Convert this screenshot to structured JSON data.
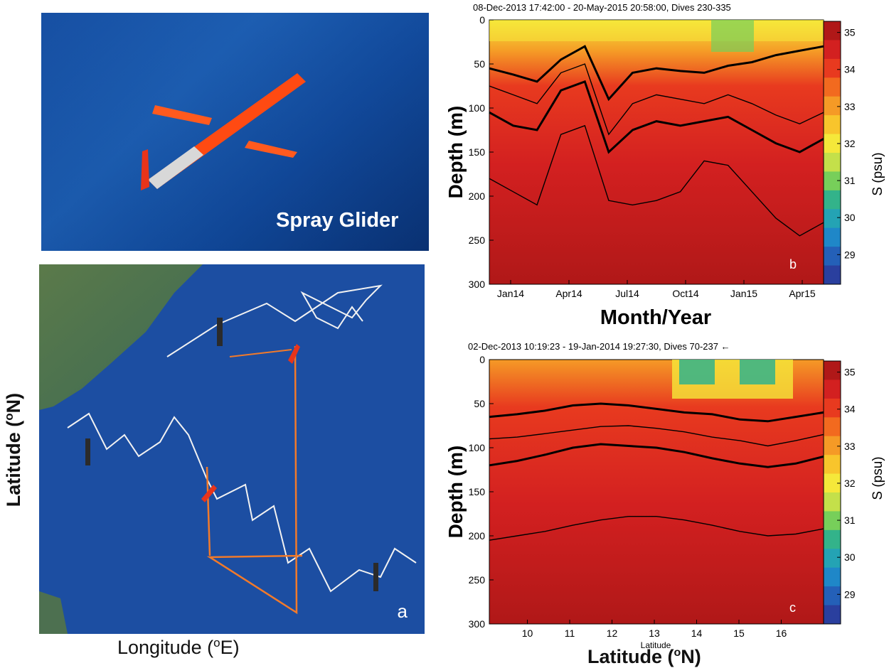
{
  "photo": {
    "caption": "Spray Glider"
  },
  "map": {
    "panel_label": "a",
    "xlabel_main": "Longitude (",
    "xlabel_sup": "o",
    "xlabel_end": "E)",
    "ylabel_main": "Latitude (",
    "ylabel_sup": "o",
    "ylabel_end": "N)"
  },
  "colorbar": {
    "label": "S (psu)",
    "ticks": [
      "35",
      "34",
      "33",
      "32",
      "31",
      "30",
      "29"
    ],
    "colors": [
      "#b01818",
      "#d32020",
      "#e83a1f",
      "#f26a1f",
      "#f59a26",
      "#f8c52c",
      "#f5e83a",
      "#c4e04a",
      "#77cf5a",
      "#33b38a",
      "#24a3b4",
      "#1f87c8",
      "#2460b8",
      "#2a3f9e"
    ]
  },
  "chart_data": [
    {
      "type": "heatmap",
      "panel_label": "b",
      "title": "08-Dec-2013 17:42:00 - 20-May-2015 20:58:00, Dives 230-335",
      "xlabel": "Month/Year",
      "ylabel": "Depth (m)",
      "x_ticks": [
        "Jan14",
        "Apr14",
        "Jul14",
        "Oct14",
        "Jan15",
        "Apr15"
      ],
      "y_ticks": [
        "0",
        "50",
        "100",
        "150",
        "200",
        "250",
        "300"
      ],
      "ylim": [
        0,
        300
      ],
      "colorbar_range": [
        28.2,
        35.3
      ],
      "contours": [
        {
          "level": 34.5,
          "depths": [
            55,
            62,
            70,
            45,
            30,
            90,
            60,
            55,
            58,
            60,
            52,
            48,
            40,
            35,
            30
          ]
        },
        {
          "level": 34.8,
          "depths": [
            75,
            85,
            95,
            60,
            50,
            130,
            95,
            85,
            90,
            95,
            85,
            95,
            108,
            118,
            105
          ]
        },
        {
          "level": 35.0,
          "depths": [
            105,
            120,
            125,
            80,
            70,
            150,
            125,
            115,
            120,
            115,
            110,
            125,
            140,
            150,
            135
          ]
        },
        {
          "level": 35.1,
          "depths": [
            180,
            195,
            210,
            130,
            120,
            205,
            210,
            205,
            195,
            160,
            165,
            195,
            225,
            245,
            230
          ]
        }
      ],
      "colorbar_label": "S (psu)"
    },
    {
      "type": "heatmap",
      "panel_label": "c",
      "title": "02-Dec-2013 10:19:23 - 19-Jan-2014 19:27:30, Dives 70-237 ←",
      "xlabel": "Latitude (",
      "xlabel_sup": "o",
      "xlabel_end": "N)",
      "x_sublabel": "Latitude",
      "ylabel": "Depth (m)",
      "x_ticks": [
        "10",
        "11",
        "12",
        "13",
        "14",
        "15",
        "16"
      ],
      "y_ticks": [
        "0",
        "50",
        "100",
        "150",
        "200",
        "250",
        "300"
      ],
      "xlim": [
        9.1,
        17
      ],
      "ylim": [
        0,
        300
      ],
      "colorbar_range": [
        28.2,
        35.3
      ],
      "contours": [
        {
          "level": 34.5,
          "depths": [
            65,
            62,
            58,
            52,
            50,
            52,
            56,
            60,
            62,
            68,
            70,
            65,
            60
          ]
        },
        {
          "level": 34.8,
          "depths": [
            90,
            88,
            84,
            80,
            76,
            75,
            78,
            82,
            88,
            92,
            98,
            92,
            85
          ]
        },
        {
          "level": 35.0,
          "depths": [
            120,
            115,
            108,
            100,
            96,
            98,
            100,
            105,
            112,
            118,
            122,
            118,
            110
          ]
        },
        {
          "level": 35.1,
          "depths": [
            205,
            200,
            195,
            188,
            182,
            178,
            178,
            182,
            188,
            195,
            200,
            198,
            192
          ]
        }
      ],
      "colorbar_label": "S (psu)"
    }
  ]
}
